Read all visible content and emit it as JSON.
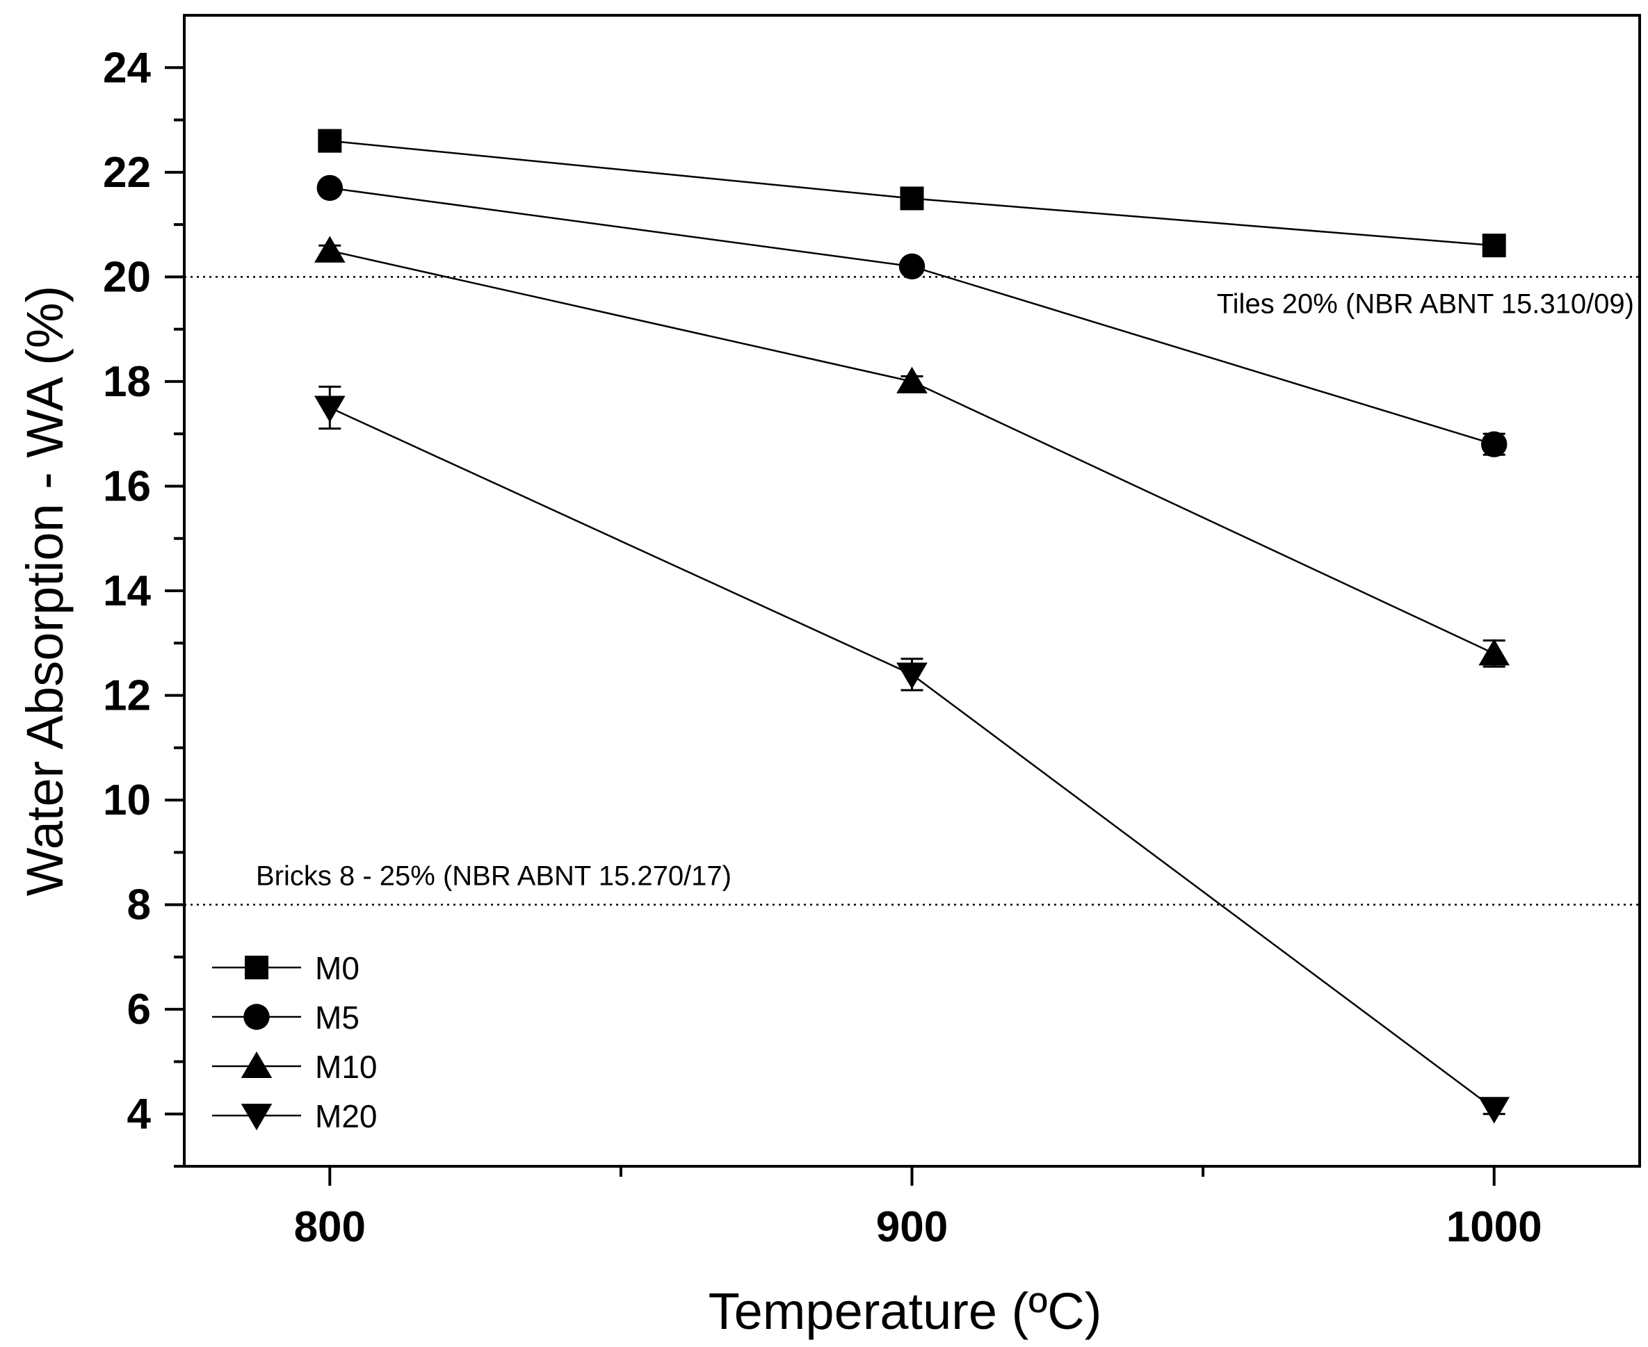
{
  "chart_data": {
    "type": "line",
    "title": "",
    "xlabel": "Temperature (ºC)",
    "ylabel": "Water Absorption - WA (%)",
    "x": [
      800,
      900,
      1000
    ],
    "xlim": [
      775,
      1025
    ],
    "ylim": [
      3,
      25
    ],
    "x_ticks": [
      800,
      900,
      1000
    ],
    "y_ticks": [
      4,
      6,
      8,
      10,
      12,
      14,
      16,
      18,
      20,
      22,
      24
    ],
    "grid": false,
    "legend_position": "bottom-left",
    "series": [
      {
        "name": "M0",
        "marker": "square",
        "values": [
          22.6,
          21.5,
          20.6
        ],
        "errors": [
          0.1,
          0.1,
          0.1
        ]
      },
      {
        "name": "M5",
        "marker": "circle",
        "values": [
          21.7,
          20.2,
          16.8
        ],
        "errors": [
          0.1,
          0.1,
          0.2
        ]
      },
      {
        "name": "M10",
        "marker": "triangle-up",
        "values": [
          20.5,
          18.0,
          12.8
        ],
        "errors": [
          0.1,
          0.1,
          0.25
        ]
      },
      {
        "name": "M20",
        "marker": "triangle-down",
        "values": [
          17.5,
          12.4,
          4.1
        ],
        "errors": [
          0.4,
          0.3,
          0.1
        ]
      }
    ],
    "reference_lines": [
      {
        "y": 20,
        "label": "Tiles 20% (NBR ABNT 15.310/09)",
        "style": "dotted",
        "label_position": "right"
      },
      {
        "y": 8,
        "label": "Bricks 8 - 25% (NBR ABNT 15.270/17)",
        "style": "dotted",
        "label_position": "left"
      }
    ]
  }
}
